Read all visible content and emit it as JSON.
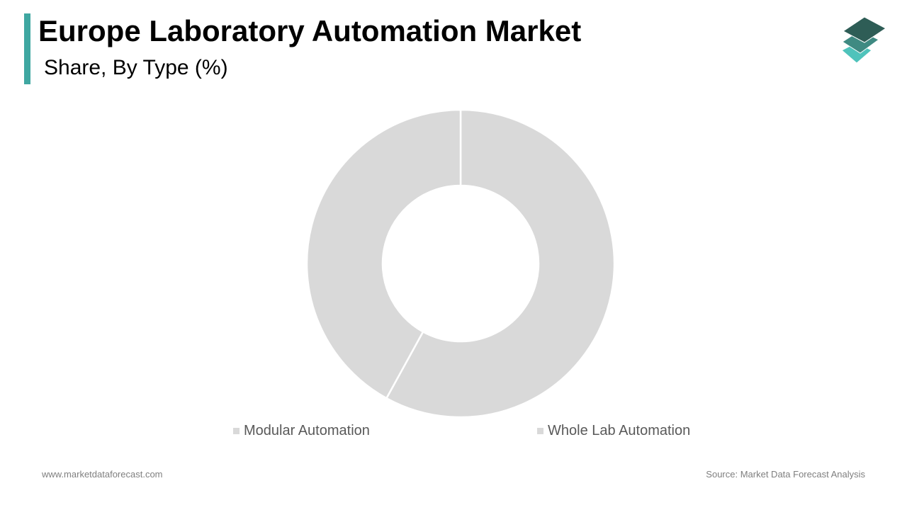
{
  "header": {
    "title": "Europe Laboratory Automation Market",
    "subtitle": "Share, By Type (%)"
  },
  "colors": {
    "accent": "#3fa7a1",
    "slice_fill": "#d9d9d9",
    "slice_stroke": "#ffffff",
    "logo_top": "#2e5d56",
    "logo_middle": "#3f8a82",
    "logo_bottom": "#4fc3bb"
  },
  "logo": {
    "icon": "stacked-layers-icon"
  },
  "chart_data": {
    "type": "pie",
    "variant": "donut",
    "title": "Share, By Type (%)",
    "series": [
      {
        "name": "Modular Automation",
        "value": 58
      },
      {
        "name": "Whole Lab Automation",
        "value": 42
      }
    ],
    "start_angle_deg": 0,
    "direction": "clockwise",
    "data_labels": false,
    "legend_position": "bottom"
  },
  "footer": {
    "website": "www.marketdataforecast.com",
    "source": "Source: Market Data Forecast Analysis"
  }
}
